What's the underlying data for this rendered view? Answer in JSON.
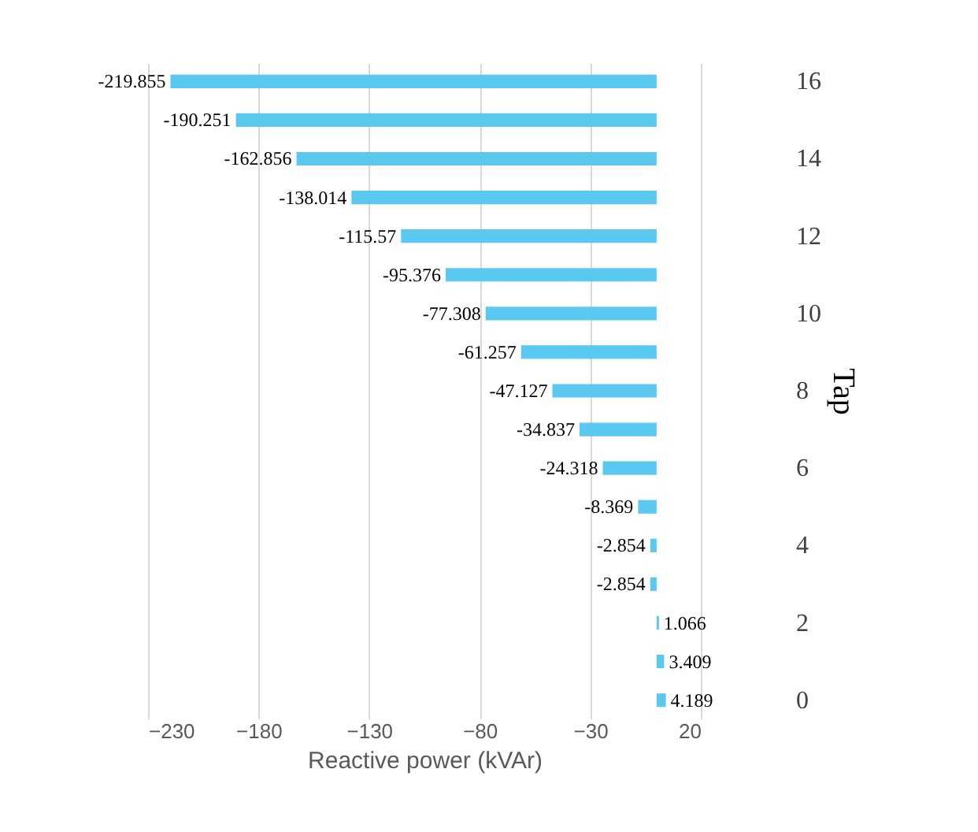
{
  "chart_data": {
    "type": "bar",
    "orientation": "horizontal",
    "xlabel": "Reactive power (kVAr)",
    "ylabel": "Tap",
    "categories": [
      "16",
      null,
      "14",
      null,
      "12",
      null,
      "10",
      null,
      "8",
      null,
      "6",
      null,
      "4",
      null,
      "2",
      null,
      "0"
    ],
    "values": [
      -219.855,
      -190.251,
      -162.856,
      -138.014,
      -115.57,
      -95.376,
      -77.308,
      -61.257,
      -47.127,
      -34.837,
      -24.318,
      -8.369,
      -2.854,
      -2.854,
      1.066,
      3.409,
      4.189
    ],
    "color": "#5bc8f0",
    "xlim": [
      -230,
      20
    ],
    "xticks": [
      -230,
      -180,
      -130,
      -80,
      -30,
      20
    ],
    "grid": "x",
    "data_labels": true
  }
}
